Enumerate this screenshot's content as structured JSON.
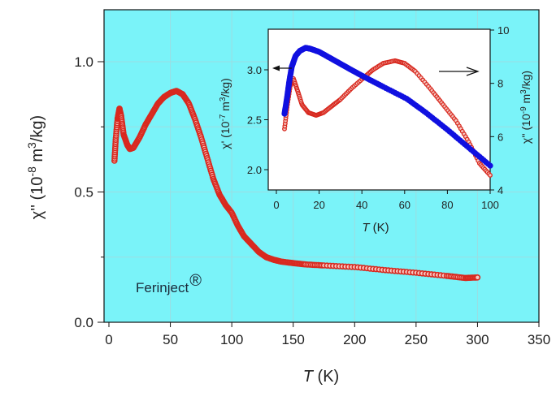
{
  "colors": {
    "plot_background": "#7af3f9",
    "grid": "#9bdde2",
    "inset_background": "#ffffff",
    "chi2_series": "#d8291f",
    "chi1_series": "#1010e0",
    "axis": "#111111"
  },
  "chart_data": [
    {
      "id": "main",
      "type": "scatter",
      "xlabel_italic": "T",
      "xlabel_unit": " (K)",
      "ylabel_parts": [
        "χ'' (10",
        "-8",
        " m",
        "3",
        "/kg)"
      ],
      "xlim": [
        0,
        350
      ],
      "ylim": [
        0,
        1.2
      ],
      "xticks": [
        0,
        50,
        100,
        150,
        200,
        250,
        300,
        350
      ],
      "xtick_labels": [
        "0",
        "50",
        "100",
        "150",
        "200",
        "250",
        "300",
        "350"
      ],
      "yticks": [
        0.0,
        0.5,
        1.0
      ],
      "ytick_labels": [
        "0.0",
        "0.5",
        "1.0"
      ],
      "grid": true,
      "annotation": {
        "text": "Ferinject",
        "mark": "®"
      },
      "series": [
        {
          "name": "χ''",
          "x": [
            4.5,
            5.5,
            7,
            8.6,
            10,
            12,
            15,
            17,
            20,
            25,
            30,
            35,
            40,
            45,
            50,
            55,
            60,
            65,
            70,
            75,
            80,
            85,
            90,
            95,
            100,
            105,
            110,
            116,
            122,
            128,
            134,
            140,
            150,
            160,
            175,
            200,
            225,
            250,
            275,
            290,
            300
          ],
          "y": [
            0.62,
            0.7,
            0.78,
            0.82,
            0.79,
            0.72,
            0.68,
            0.665,
            0.67,
            0.71,
            0.76,
            0.8,
            0.84,
            0.865,
            0.88,
            0.888,
            0.875,
            0.84,
            0.78,
            0.71,
            0.63,
            0.55,
            0.49,
            0.45,
            0.42,
            0.37,
            0.33,
            0.3,
            0.27,
            0.25,
            0.24,
            0.233,
            0.227,
            0.222,
            0.218,
            0.212,
            0.2,
            0.19,
            0.178,
            0.17,
            0.172
          ]
        }
      ]
    },
    {
      "id": "inset",
      "type": "scatter",
      "xlabel_italic": "T",
      "xlabel_unit": " (K)",
      "ylabel_left_parts": [
        "χ' (10",
        "-7",
        " m",
        "3",
        "/kg)"
      ],
      "ylabel_right_parts": [
        "χ'' (10",
        "-9",
        " m",
        "3",
        "/kg)"
      ],
      "xlim": [
        0,
        100
      ],
      "ylim_left": [
        1.8,
        3.4
      ],
      "ylim_right": [
        4,
        10
      ],
      "xticks": [
        0,
        20,
        40,
        60,
        80,
        100
      ],
      "xtick_labels": [
        "0",
        "20",
        "40",
        "60",
        "80",
        "100"
      ],
      "yticks_left": [
        2.0,
        2.5,
        3.0
      ],
      "ytick_labels_left": [
        "2.0",
        "2.5",
        "3.0"
      ],
      "yticks_right": [
        4,
        6,
        8,
        10
      ],
      "ytick_labels_right": [
        "4",
        "6",
        "8",
        "10"
      ],
      "series": [
        {
          "name": "χ'",
          "axis": "left",
          "x": [
            3.8,
            5,
            6,
            7.2,
            9,
            11,
            13.7,
            16,
            20,
            25,
            30,
            35,
            41,
            50,
            61,
            70,
            80,
            90,
            100
          ],
          "y": [
            2.56,
            2.72,
            2.88,
            3.03,
            3.14,
            3.19,
            3.22,
            3.21,
            3.18,
            3.12,
            3.06,
            3.0,
            2.93,
            2.83,
            2.71,
            2.57,
            2.4,
            2.22,
            2.04
          ]
        },
        {
          "name": "χ''",
          "axis": "right",
          "x": [
            3.8,
            5,
            6.5,
            8,
            10,
            12,
            15,
            18.6,
            22,
            26,
            30,
            35,
            40.7,
            45,
            50,
            55.5,
            60,
            65,
            72,
            78,
            84,
            90,
            95,
            100
          ],
          "y": [
            6.29,
            7.1,
            7.9,
            8.18,
            7.7,
            7.2,
            6.9,
            6.8,
            6.9,
            7.15,
            7.4,
            7.8,
            8.2,
            8.5,
            8.75,
            8.85,
            8.75,
            8.45,
            7.8,
            7.2,
            6.6,
            5.8,
            5.0,
            4.55
          ]
        }
      ],
      "arrows": [
        {
          "points_to": "left axis"
        },
        {
          "points_to": "right axis"
        }
      ]
    }
  ]
}
